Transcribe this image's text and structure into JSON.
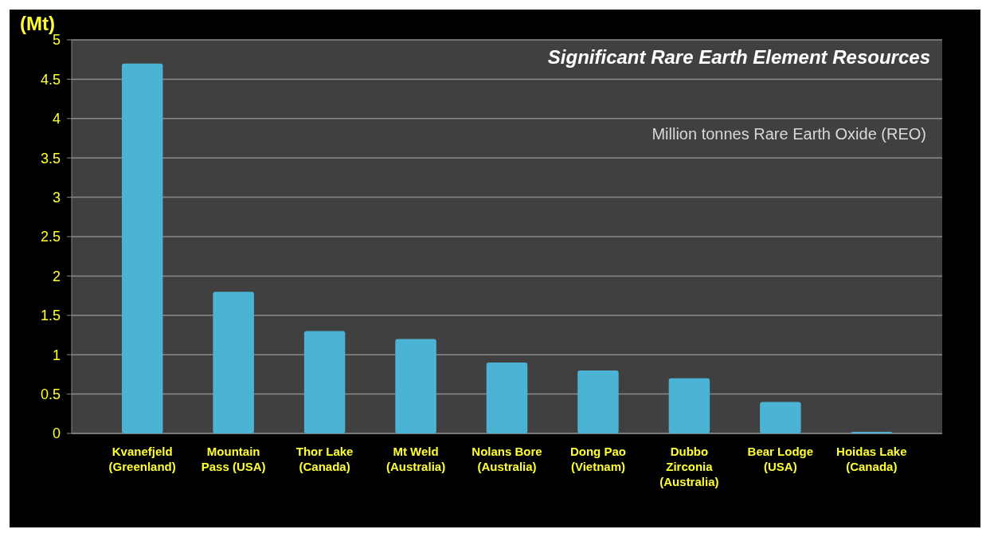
{
  "chart_data": {
    "type": "bar",
    "title": "Significant Rare Earth Element Resources",
    "annotations": [
      "Million tonnes Rare Earth Oxide (REO)"
    ],
    "ylabel": "(Mt)",
    "categories": [
      "Kvanefjeld\n(Greenland)",
      "Mountain\nPass (USA)",
      "Thor Lake\n(Canada)",
      "Mt Weld\n(Australia)",
      "Nolans Bore\n(Australia)",
      "Dong Pao\n(Vietnam)",
      "Dubbo\nZirconia\n(Australia)",
      "Bear Lodge\n(USA)",
      "Hoidas Lake\n(Canada)"
    ],
    "values": [
      4.7,
      1.8,
      1.3,
      1.2,
      0.9,
      0.8,
      0.7,
      0.4,
      0.02
    ],
    "color": "#4bb3d4",
    "ylim": [
      0,
      5
    ],
    "yticks": [
      0,
      0.5,
      1,
      1.5,
      2,
      2.5,
      3,
      3.5,
      4,
      4.5,
      5
    ],
    "grid": "y"
  }
}
